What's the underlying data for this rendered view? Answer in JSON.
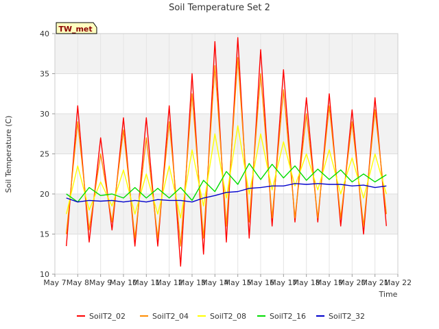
{
  "chart_data": {
    "type": "line",
    "title": "Soil Temperature Set 2",
    "ylabel": "Soil Temperature (C)",
    "xlabel": "Time",
    "station_badge": "TW_met",
    "xlim": [
      "May 7",
      "May 22"
    ],
    "ylim": [
      10,
      40
    ],
    "x_ticks": [
      "May 7",
      "May 8",
      "May 9",
      "May 10",
      "May 11",
      "May 12",
      "May 13",
      "May 14",
      "May 15",
      "May 16",
      "May 17",
      "May 18",
      "May 19",
      "May 20",
      "May 21",
      "May 22"
    ],
    "y_ticks": [
      10,
      15,
      20,
      25,
      30,
      35,
      40
    ],
    "grid": true,
    "legend_position": "bottom",
    "x": [
      "May 7.5",
      "May 8",
      "May 8.5",
      "May 9",
      "May 9.5",
      "May 10",
      "May 10.5",
      "May 11",
      "May 11.5",
      "May 12",
      "May 12.5",
      "May 13",
      "May 13.5",
      "May 14",
      "May 14.5",
      "May 15",
      "May 15.5",
      "May 16",
      "May 16.5",
      "May 17",
      "May 17.5",
      "May 18",
      "May 18.5",
      "May 19",
      "May 19.5",
      "May 20",
      "May 20.5",
      "May 21",
      "May 21.5"
    ],
    "series": [
      {
        "name": "SoilT2_02",
        "color": "#ff0000",
        "values": [
          13.5,
          31,
          14,
          27,
          15.5,
          29.5,
          13.5,
          29.5,
          13.5,
          31,
          11,
          35,
          12.5,
          39,
          14,
          39.5,
          14.5,
          38,
          16,
          35.5,
          16.5,
          32,
          16.5,
          32.5,
          16,
          30.5,
          15,
          32,
          16
        ]
      },
      {
        "name": "SoilT2_04",
        "color": "#ff8c00",
        "values": [
          15,
          29,
          15.5,
          25,
          16.5,
          28,
          14.5,
          27,
          14.5,
          29,
          13.5,
          32.5,
          14.5,
          36,
          16,
          37,
          16.5,
          35,
          17,
          33,
          17,
          30,
          17,
          31,
          17,
          29,
          16,
          30.5,
          17.5
        ]
      },
      {
        "name": "SoilT2_08",
        "color": "#ffff00",
        "values": [
          17.5,
          23.5,
          18,
          21.5,
          18.5,
          23,
          17.5,
          22.5,
          17.5,
          23.5,
          17,
          25.5,
          18.5,
          27.5,
          19.5,
          28.5,
          20,
          27.5,
          20.5,
          26.5,
          21,
          25,
          20.5,
          25.5,
          20,
          24.5,
          19.5,
          25,
          20
        ]
      },
      {
        "name": "SoilT2_16",
        "color": "#00dd00",
        "values": [
          20,
          19,
          20.8,
          19.8,
          20,
          19.5,
          20.8,
          19.5,
          20.7,
          19.5,
          20.8,
          19.2,
          21.7,
          20.3,
          22.8,
          21.2,
          23.8,
          21.8,
          23.7,
          22,
          23.5,
          21.7,
          23.1,
          21.8,
          23,
          21.5,
          22.5,
          21.5,
          22.4
        ]
      },
      {
        "name": "SoilT2_32",
        "color": "#0000cc",
        "values": [
          19.5,
          19,
          19.2,
          19.1,
          19.2,
          19,
          19.2,
          19,
          19.3,
          19.2,
          19.2,
          19,
          19.5,
          19.8,
          20.2,
          20.3,
          20.7,
          20.8,
          21,
          21,
          21.3,
          21.2,
          21.3,
          21.2,
          21.2,
          21,
          21.1,
          20.8,
          21
        ]
      }
    ]
  }
}
